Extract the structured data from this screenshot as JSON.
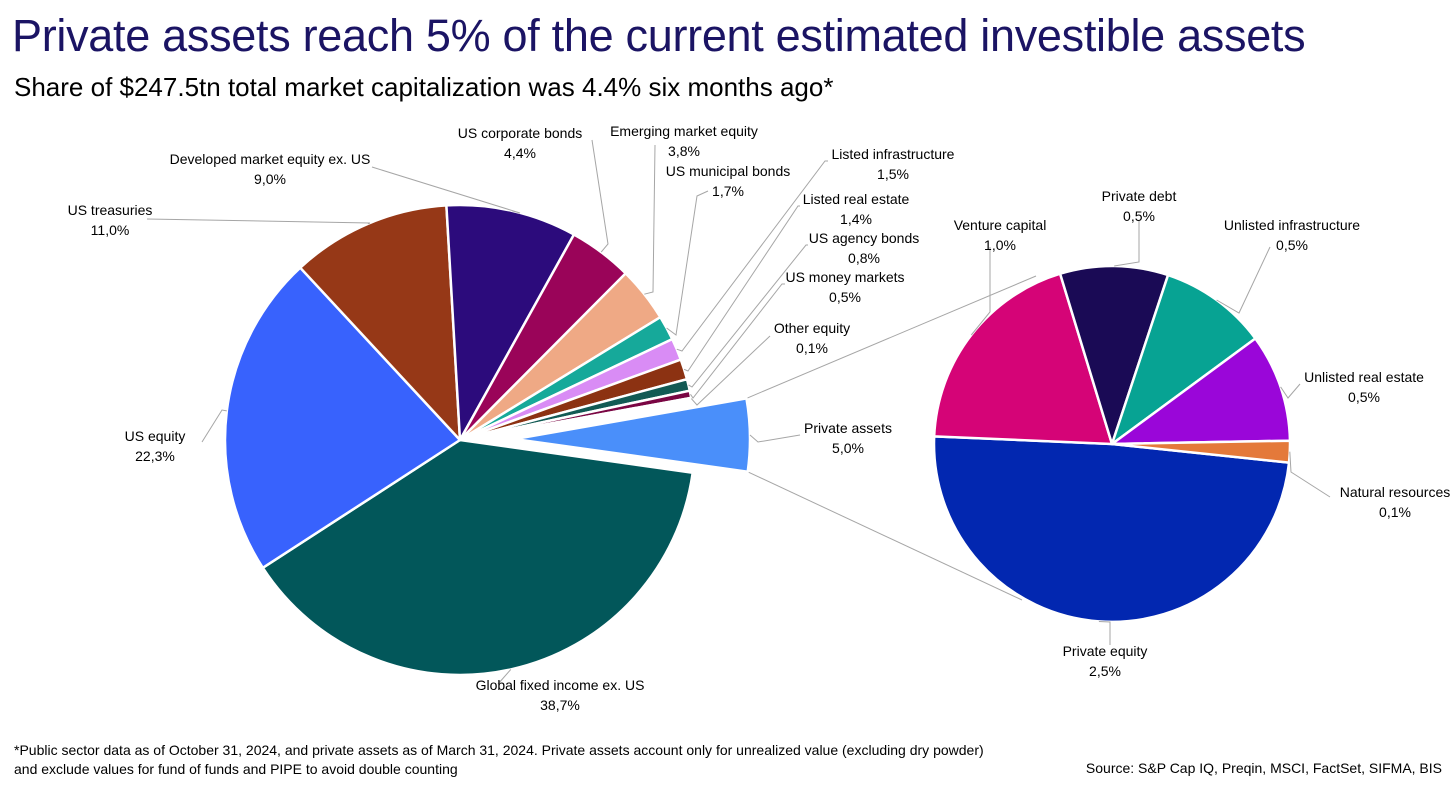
{
  "header": {
    "title": "Private assets reach 5% of the current estimated investible assets",
    "subtitle": "Share of $247.5tn total market capitalization was 4.4% six months ago*"
  },
  "chart_data": [
    {
      "type": "pie",
      "name": "Total investible assets",
      "value_unit": "%",
      "slices": [
        {
          "label": "Global fixed income ex. US",
          "value_text": "38,7%",
          "value": 38.7,
          "color": "#02575a"
        },
        {
          "label": "US equity",
          "value_text": "22,3%",
          "value": 22.3,
          "color": "#3862fd"
        },
        {
          "label": "US treasuries",
          "value_text": "11,0%",
          "value": 11.0,
          "color": "#963817"
        },
        {
          "label": "Developed market equity ex. US",
          "value_text": "9,0%",
          "value": 9.0,
          "color": "#2c0b7c"
        },
        {
          "label": "US corporate bonds",
          "value_text": "4,4%",
          "value": 4.4,
          "color": "#9a0459"
        },
        {
          "label": "Emerging market equity",
          "value_text": "3,8%",
          "value": 3.8,
          "color": "#efa985"
        },
        {
          "label": "US municipal bonds",
          "value_text": "1,7%",
          "value": 1.7,
          "color": "#16a99a"
        },
        {
          "label": "Listed infrastructure",
          "value_text": "1,5%",
          "value": 1.5,
          "color": "#d98cf5"
        },
        {
          "label": "Listed real estate",
          "value_text": "1,4%",
          "value": 1.4,
          "color": "#8c3212"
        },
        {
          "label": "US agency bonds",
          "value_text": "0,8%",
          "value": 0.8,
          "color": "#125a54"
        },
        {
          "label": "US money markets",
          "value_text": "0,5%",
          "value": 0.5,
          "color": "#7a0643"
        },
        {
          "label": "Other equity",
          "value_text": "0,1%",
          "value": 0.1,
          "color": "#b57c67"
        },
        {
          "label": "Private assets",
          "value_text": "5,0%",
          "value": 5.0,
          "color": "#4a8ffa",
          "exploded": true
        }
      ]
    },
    {
      "type": "pie",
      "name": "Private assets breakdown",
      "value_unit": "%",
      "slices": [
        {
          "label": "Private equity",
          "value_text": "2,5%",
          "value": 2.5,
          "color": "#0227b0"
        },
        {
          "label": "Venture capital",
          "value_text": "1,0%",
          "value": 1.0,
          "color": "#d50477"
        },
        {
          "label": "Private debt",
          "value_text": "0,5%",
          "value": 0.5,
          "color": "#1a0a55"
        },
        {
          "label": "Unlisted infrastructure",
          "value_text": "0,5%",
          "value": 0.5,
          "color": "#07a393"
        },
        {
          "label": "Unlisted real estate",
          "value_text": "0,5%",
          "value": 0.5,
          "color": "#9a06d9"
        },
        {
          "label": "Natural resources",
          "value_text": "0,1%",
          "value": 0.1,
          "color": "#e4793a"
        }
      ]
    }
  ],
  "footnote": {
    "line1": "*Public sector data as of October 31, 2024, and private assets as of March 31, 2024. Private assets account only for unrealized value (excluding dry powder)",
    "line2": "and exclude values for fund of funds and PIPE to avoid double counting"
  },
  "source": "Source: S&P Cap IQ, Preqin, MSCI, FactSet, SIFMA, BIS"
}
